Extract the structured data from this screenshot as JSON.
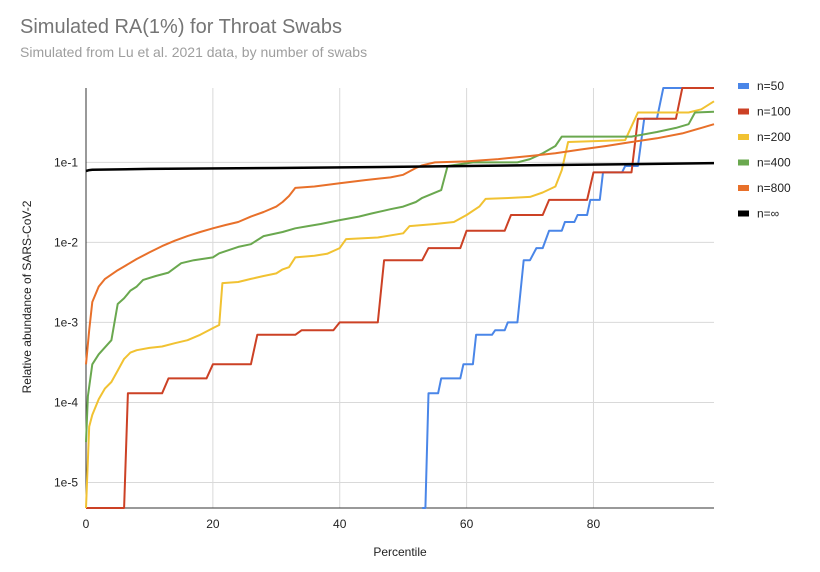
{
  "chart_data": {
    "type": "line",
    "title": "Simulated RA(1%) for Throat Swabs",
    "subtitle": "Simulated from Lu et al. 2021 data, by number of swabs",
    "xlabel": "Percentile",
    "ylabel": "Relative abundance of SARS-CoV-2",
    "xlim": [
      0,
      99
    ],
    "ylim": [
      4.8e-06,
      0.85
    ],
    "yscale": "log",
    "grid": true,
    "legend_position": "right",
    "x_ticks": [
      {
        "value": 0,
        "label": "0"
      },
      {
        "value": 20,
        "label": "20"
      },
      {
        "value": 40,
        "label": "40"
      },
      {
        "value": 60,
        "label": "60"
      },
      {
        "value": 80,
        "label": "80"
      }
    ],
    "y_ticks": [
      {
        "value": 1e-05,
        "label": "1e-5"
      },
      {
        "value": 0.0001,
        "label": "1e-4"
      },
      {
        "value": 0.001,
        "label": "1e-3"
      },
      {
        "value": 0.01,
        "label": "1e-2"
      },
      {
        "value": 0.1,
        "label": "1e-1"
      }
    ],
    "series": [
      {
        "name": "n=50",
        "color": "#4a86e8",
        "points": [
          [
            53,
            4.8e-06
          ],
          [
            53.5,
            4.8e-06
          ],
          [
            54,
            0.00013
          ],
          [
            55.5,
            0.00013
          ],
          [
            56,
            0.0002
          ],
          [
            59,
            0.0002
          ],
          [
            59.5,
            0.0003
          ],
          [
            61,
            0.0003
          ],
          [
            61.5,
            0.0007
          ],
          [
            64,
            0.0007
          ],
          [
            64.5,
            0.0008
          ],
          [
            66,
            0.0008
          ],
          [
            66.5,
            0.001
          ],
          [
            68,
            0.001
          ],
          [
            69,
            0.006
          ],
          [
            70,
            0.006
          ],
          [
            71,
            0.0085
          ],
          [
            72,
            0.0085
          ],
          [
            73,
            0.014
          ],
          [
            75,
            0.014
          ],
          [
            75.5,
            0.018
          ],
          [
            77,
            0.018
          ],
          [
            77.5,
            0.022
          ],
          [
            79,
            0.022
          ],
          [
            79.5,
            0.034
          ],
          [
            81,
            0.034
          ],
          [
            81.5,
            0.075
          ],
          [
            84.5,
            0.075
          ],
          [
            85,
            0.09
          ],
          [
            87,
            0.09
          ],
          [
            88,
            0.35
          ],
          [
            90,
            0.35
          ],
          [
            91,
            0.85
          ],
          [
            99,
            0.85
          ]
        ]
      },
      {
        "name": "n=100",
        "color": "#cc4125",
        "points": [
          [
            0,
            4.8e-06
          ],
          [
            6,
            4.8e-06
          ],
          [
            6.6,
            0.00013
          ],
          [
            12,
            0.00013
          ],
          [
            13,
            0.0002
          ],
          [
            19,
            0.0002
          ],
          [
            20,
            0.0003
          ],
          [
            26,
            0.0003
          ],
          [
            27,
            0.0007
          ],
          [
            33,
            0.0007
          ],
          [
            34,
            0.0008
          ],
          [
            39,
            0.0008
          ],
          [
            40,
            0.001
          ],
          [
            46,
            0.001
          ],
          [
            47,
            0.006
          ],
          [
            53,
            0.006
          ],
          [
            54,
            0.0085
          ],
          [
            59,
            0.0085
          ],
          [
            60,
            0.014
          ],
          [
            66,
            0.014
          ],
          [
            67,
            0.022
          ],
          [
            72,
            0.022
          ],
          [
            73,
            0.034
          ],
          [
            79,
            0.034
          ],
          [
            80,
            0.075
          ],
          [
            86,
            0.075
          ],
          [
            87,
            0.35
          ],
          [
            93,
            0.35
          ],
          [
            94,
            0.85
          ],
          [
            99,
            0.85
          ]
        ]
      },
      {
        "name": "n=200",
        "color": "#f1c232",
        "points": [
          [
            0,
            4.8e-06
          ],
          [
            0.5,
            5e-05
          ],
          [
            1,
            7e-05
          ],
          [
            2,
            0.00011
          ],
          [
            3,
            0.00015
          ],
          [
            4,
            0.00018
          ],
          [
            5,
            0.00025
          ],
          [
            6,
            0.00035
          ],
          [
            7,
            0.00042
          ],
          [
            8,
            0.00045
          ],
          [
            10,
            0.00048
          ],
          [
            12,
            0.0005
          ],
          [
            14,
            0.00055
          ],
          [
            16,
            0.0006
          ],
          [
            18,
            0.0007
          ],
          [
            20,
            0.00085
          ],
          [
            21,
            0.00093
          ],
          [
            21.5,
            0.0031
          ],
          [
            24,
            0.0032
          ],
          [
            26,
            0.0035
          ],
          [
            28,
            0.0038
          ],
          [
            30,
            0.0041
          ],
          [
            31,
            0.0046
          ],
          [
            32,
            0.0049
          ],
          [
            33,
            0.0065
          ],
          [
            36,
            0.0068
          ],
          [
            38,
            0.0072
          ],
          [
            40,
            0.0085
          ],
          [
            41,
            0.011
          ],
          [
            46,
            0.0115
          ],
          [
            50,
            0.013
          ],
          [
            51,
            0.016
          ],
          [
            55,
            0.017
          ],
          [
            58,
            0.018
          ],
          [
            60,
            0.022
          ],
          [
            62,
            0.028
          ],
          [
            63,
            0.035
          ],
          [
            67,
            0.036
          ],
          [
            70,
            0.037
          ],
          [
            72,
            0.042
          ],
          [
            74,
            0.05
          ],
          [
            75,
            0.08
          ],
          [
            76,
            0.18
          ],
          [
            85,
            0.19
          ],
          [
            87,
            0.42
          ],
          [
            95,
            0.42
          ],
          [
            97,
            0.46
          ],
          [
            99,
            0.58
          ]
        ]
      },
      {
        "name": "n=400",
        "color": "#6aa84f",
        "points": [
          [
            0,
            3.2e-05
          ],
          [
            0.3,
            0.00012
          ],
          [
            1,
            0.0003
          ],
          [
            2,
            0.0004
          ],
          [
            4,
            0.0006
          ],
          [
            5,
            0.0017
          ],
          [
            6,
            0.002
          ],
          [
            7,
            0.0025
          ],
          [
            8,
            0.0028
          ],
          [
            9,
            0.0034
          ],
          [
            11,
            0.0038
          ],
          [
            13,
            0.0042
          ],
          [
            15,
            0.0055
          ],
          [
            17,
            0.006
          ],
          [
            20,
            0.0065
          ],
          [
            21,
            0.0073
          ],
          [
            24,
            0.0088
          ],
          [
            26,
            0.0095
          ],
          [
            28,
            0.012
          ],
          [
            31,
            0.0135
          ],
          [
            33,
            0.015
          ],
          [
            35,
            0.016
          ],
          [
            37,
            0.017
          ],
          [
            40,
            0.019
          ],
          [
            43,
            0.021
          ],
          [
            45,
            0.023
          ],
          [
            48,
            0.026
          ],
          [
            50,
            0.028
          ],
          [
            52,
            0.032
          ],
          [
            53,
            0.036
          ],
          [
            56,
            0.045
          ],
          [
            57,
            0.09
          ],
          [
            61,
            0.1
          ],
          [
            68,
            0.1
          ],
          [
            70,
            0.11
          ],
          [
            72,
            0.13
          ],
          [
            74,
            0.16
          ],
          [
            75,
            0.21
          ],
          [
            86,
            0.21
          ],
          [
            90,
            0.24
          ],
          [
            93,
            0.27
          ],
          [
            95,
            0.3
          ],
          [
            96,
            0.42
          ],
          [
            99,
            0.43
          ]
        ]
      },
      {
        "name": "n=800",
        "color": "#e8702a",
        "points": [
          [
            0,
            0.0003
          ],
          [
            0.5,
            0.0008
          ],
          [
            1,
            0.0018
          ],
          [
            2,
            0.0028
          ],
          [
            3,
            0.0035
          ],
          [
            5,
            0.0045
          ],
          [
            6,
            0.005
          ],
          [
            8,
            0.0062
          ],
          [
            10,
            0.0075
          ],
          [
            12,
            0.009
          ],
          [
            14,
            0.0105
          ],
          [
            16,
            0.012
          ],
          [
            18,
            0.0135
          ],
          [
            20,
            0.015
          ],
          [
            22,
            0.0165
          ],
          [
            24,
            0.018
          ],
          [
            26,
            0.021
          ],
          [
            28,
            0.024
          ],
          [
            30,
            0.028
          ],
          [
            31,
            0.032
          ],
          [
            32,
            0.038
          ],
          [
            33,
            0.048
          ],
          [
            36,
            0.05
          ],
          [
            40,
            0.055
          ],
          [
            44,
            0.06
          ],
          [
            48,
            0.065
          ],
          [
            50,
            0.07
          ],
          [
            52,
            0.085
          ],
          [
            53,
            0.092
          ],
          [
            55,
            0.1
          ],
          [
            60,
            0.103
          ],
          [
            65,
            0.11
          ],
          [
            70,
            0.12
          ],
          [
            74,
            0.13
          ],
          [
            78,
            0.145
          ],
          [
            82,
            0.16
          ],
          [
            86,
            0.18
          ],
          [
            90,
            0.2
          ],
          [
            94,
            0.23
          ],
          [
            97,
            0.27
          ],
          [
            99,
            0.3
          ]
        ]
      },
      {
        "name": "n=∞",
        "color": "#000000",
        "points": [
          [
            0,
            0.078
          ],
          [
            0.5,
            0.08
          ],
          [
            1,
            0.081
          ],
          [
            10,
            0.083
          ],
          [
            30,
            0.085
          ],
          [
            50,
            0.088
          ],
          [
            60,
            0.09
          ],
          [
            70,
            0.092
          ],
          [
            85,
            0.095
          ],
          [
            99,
            0.098
          ]
        ]
      }
    ]
  }
}
